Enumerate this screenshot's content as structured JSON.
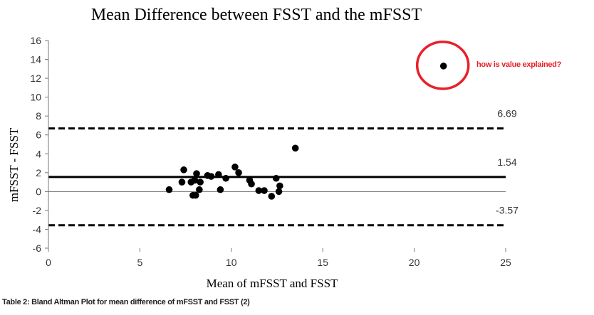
{
  "chart_data": {
    "type": "scatter",
    "title": "Mean Difference between FSST and the mFSST",
    "xlabel": "Mean of mFSST and FSST",
    "ylabel": "mFSST - FSST",
    "xlim": [
      0,
      25
    ],
    "ylim": [
      -6,
      16
    ],
    "xticks": [
      0,
      5,
      10,
      15,
      20,
      25
    ],
    "yticks": [
      -6,
      -4,
      -2,
      0,
      2,
      4,
      6,
      8,
      10,
      12,
      14,
      16
    ],
    "grid": false,
    "points": [
      {
        "x": 6.6,
        "y": 0.2
      },
      {
        "x": 7.3,
        "y": 1.0
      },
      {
        "x": 7.4,
        "y": 2.3
      },
      {
        "x": 7.8,
        "y": 1.0
      },
      {
        "x": 7.9,
        "y": -0.4
      },
      {
        "x": 8.0,
        "y": 1.2
      },
      {
        "x": 8.05,
        "y": -0.4
      },
      {
        "x": 8.1,
        "y": 1.9
      },
      {
        "x": 8.25,
        "y": 0.2
      },
      {
        "x": 8.3,
        "y": 1.0
      },
      {
        "x": 8.7,
        "y": 1.7
      },
      {
        "x": 8.9,
        "y": 1.6
      },
      {
        "x": 9.3,
        "y": 1.8
      },
      {
        "x": 9.4,
        "y": 0.2
      },
      {
        "x": 9.7,
        "y": 1.4
      },
      {
        "x": 10.2,
        "y": 2.6
      },
      {
        "x": 10.4,
        "y": 2.0
      },
      {
        "x": 11.0,
        "y": 1.2
      },
      {
        "x": 11.1,
        "y": 0.8
      },
      {
        "x": 11.5,
        "y": 0.1
      },
      {
        "x": 11.8,
        "y": 0.1
      },
      {
        "x": 12.2,
        "y": -0.5
      },
      {
        "x": 12.45,
        "y": 1.4
      },
      {
        "x": 12.6,
        "y": 0.0
      },
      {
        "x": 12.65,
        "y": 0.6
      },
      {
        "x": 13.5,
        "y": 4.6
      },
      {
        "x": 21.6,
        "y": 13.3
      }
    ],
    "reference_lines": [
      {
        "value": 6.69,
        "label": "6.69",
        "style": "dashed"
      },
      {
        "value": 1.54,
        "label": "1.54",
        "style": "solid"
      },
      {
        "value": -3.57,
        "label": "-3.57",
        "style": "dashed"
      }
    ],
    "annotation": {
      "text": "how is value explained?",
      "target": {
        "x": 21.6,
        "y": 13.3
      },
      "color": "#e8202a"
    }
  },
  "caption": "Table 2: Bland Altman Plot for mean difference of mFSST and FSST (2)"
}
